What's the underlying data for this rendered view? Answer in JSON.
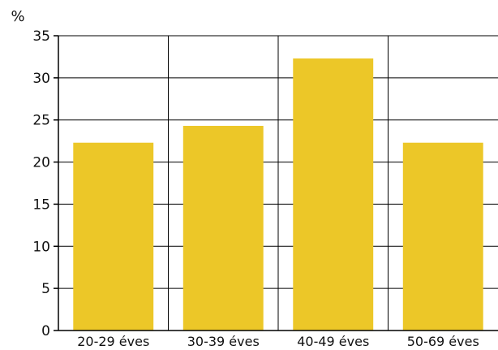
{
  "chart_data": {
    "type": "bar",
    "title": "",
    "xlabel": "",
    "ylabel": "%",
    "categories": [
      "20-29 éves",
      "30-39 éves",
      "40-49 éves",
      "50-69 éves"
    ],
    "values": [
      22.3,
      24.3,
      32.3,
      22.3
    ],
    "ylim": [
      0,
      35
    ],
    "yticks": [
      0,
      5,
      10,
      15,
      20,
      25,
      30,
      35
    ],
    "ytick_labels": [
      "0",
      "5",
      "10",
      "15",
      "20",
      "25",
      "30",
      "35"
    ],
    "grid": true,
    "legend": "none",
    "colors": {
      "bar": "#ECC728",
      "axis": "#000000",
      "grid": "#000000"
    }
  }
}
